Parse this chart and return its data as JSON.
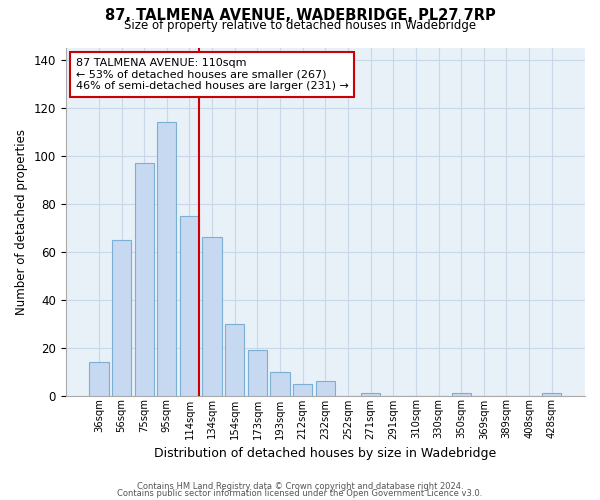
{
  "title": "87, TALMENA AVENUE, WADEBRIDGE, PL27 7RP",
  "subtitle": "Size of property relative to detached houses in Wadebridge",
  "xlabel": "Distribution of detached houses by size in Wadebridge",
  "ylabel": "Number of detached properties",
  "bar_labels": [
    "36sqm",
    "56sqm",
    "75sqm",
    "95sqm",
    "114sqm",
    "134sqm",
    "154sqm",
    "173sqm",
    "193sqm",
    "212sqm",
    "232sqm",
    "252sqm",
    "271sqm",
    "291sqm",
    "310sqm",
    "330sqm",
    "350sqm",
    "369sqm",
    "389sqm",
    "408sqm",
    "428sqm"
  ],
  "bar_values": [
    14,
    65,
    97,
    114,
    75,
    66,
    30,
    19,
    10,
    5,
    6,
    0,
    1,
    0,
    0,
    0,
    1,
    0,
    0,
    0,
    1
  ],
  "bar_color": "#c6d9f0",
  "bar_edge_color": "#7bafd4",
  "vline_color": "#cc0000",
  "vline_position": 4.425,
  "ylim_max": 145,
  "yticks": [
    0,
    20,
    40,
    60,
    80,
    100,
    120,
    140
  ],
  "annotation_title": "87 TALMENA AVENUE: 110sqm",
  "annotation_line1": "← 53% of detached houses are smaller (267)",
  "annotation_line2": "46% of semi-detached houses are larger (231) →",
  "footer1": "Contains HM Land Registry data © Crown copyright and database right 2024.",
  "footer2": "Contains public sector information licensed under the Open Government Licence v3.0.",
  "background_color": "#ffffff",
  "grid_color": "#c8d8e8"
}
